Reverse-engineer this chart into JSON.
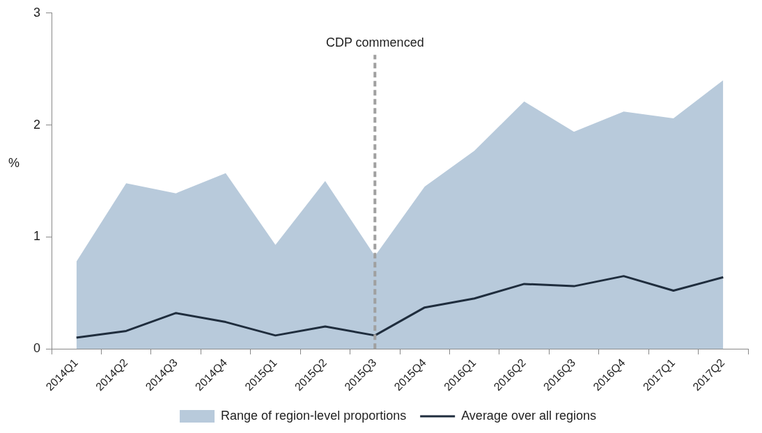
{
  "chart_data": {
    "type": "line",
    "ylabel": "%",
    "categories": [
      "2014Q1",
      "2014Q2",
      "2014Q3",
      "2014Q4",
      "2015Q1",
      "2015Q2",
      "2015Q3",
      "2015Q4",
      "2016Q1",
      "2016Q2",
      "2016Q3",
      "2016Q4",
      "2017Q1",
      "2017Q2"
    ],
    "series": [
      {
        "name": "Range of region-level proportions",
        "type": "area",
        "color": "#b8cadb",
        "values": [
          0.78,
          1.48,
          1.39,
          1.57,
          0.93,
          1.5,
          0.83,
          1.45,
          1.77,
          2.21,
          1.94,
          2.12,
          2.06,
          2.4
        ]
      },
      {
        "name": "Average over all regions",
        "color": "#1f2d3d",
        "values": [
          0.1,
          0.16,
          0.32,
          0.24,
          0.12,
          0.2,
          0.12,
          0.37,
          0.45,
          0.58,
          0.56,
          0.65,
          0.52,
          0.64
        ]
      }
    ],
    "ylim": [
      0,
      3
    ],
    "yticks": [
      0,
      1,
      2,
      3
    ],
    "grid": false,
    "legend": "bottom",
    "marker": "none",
    "line_style": "solid",
    "ref_lines": [
      {
        "axis": "x",
        "value": "2015Q3",
        "label": "CDP commenced",
        "color": "#a0a0a0",
        "line_style": "dashed"
      }
    ]
  }
}
